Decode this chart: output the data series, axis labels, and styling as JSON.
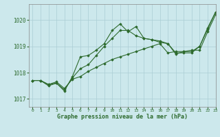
{
  "xlabel": "Graphe pression niveau de la mer (hPa)",
  "background_color": "#cce8ec",
  "grid_color": "#aacdd4",
  "line_color": "#2d6a2d",
  "xlim": [
    -0.5,
    23
  ],
  "ylim": [
    1016.7,
    1020.6
  ],
  "yticks": [
    1017,
    1018,
    1019,
    1020
  ],
  "xticks": [
    0,
    1,
    2,
    3,
    4,
    5,
    6,
    7,
    8,
    9,
    10,
    11,
    12,
    13,
    14,
    15,
    16,
    17,
    18,
    19,
    20,
    21,
    22,
    23
  ],
  "line1_x": [
    0,
    1,
    2,
    3,
    4,
    5,
    6,
    7,
    8,
    9,
    10,
    11,
    12,
    13,
    14,
    15,
    16,
    17,
    18,
    19,
    20,
    21,
    22,
    23
  ],
  "line1_y": [
    1017.7,
    1017.7,
    1017.55,
    1017.65,
    1017.4,
    1017.75,
    1017.85,
    1018.05,
    1018.2,
    1018.35,
    1018.5,
    1018.6,
    1018.7,
    1018.8,
    1018.9,
    1019.0,
    1019.1,
    1018.75,
    1018.8,
    1018.8,
    1018.85,
    1018.85,
    1019.55,
    1020.2
  ],
  "line2_x": [
    0,
    1,
    2,
    3,
    4,
    5,
    6,
    7,
    8,
    9,
    10,
    11,
    12,
    13,
    14,
    15,
    16,
    17,
    18,
    19,
    20,
    21,
    22,
    23
  ],
  "line2_y": [
    1017.7,
    1017.7,
    1017.55,
    1017.6,
    1017.35,
    1017.8,
    1018.15,
    1018.3,
    1018.65,
    1019.0,
    1019.3,
    1019.6,
    1019.6,
    1019.4,
    1019.3,
    1019.25,
    1019.2,
    1019.1,
    1018.75,
    1018.75,
    1018.75,
    1019.0,
    1019.65,
    1020.3
  ],
  "line3_x": [
    0,
    1,
    2,
    3,
    4,
    5,
    6,
    7,
    8,
    9,
    10,
    11,
    12,
    13,
    14,
    15,
    16,
    17,
    18,
    19,
    20,
    21,
    22,
    23
  ],
  "line3_y": [
    1017.7,
    1017.7,
    1017.5,
    1017.6,
    1017.3,
    1017.85,
    1018.6,
    1018.65,
    1018.85,
    1019.1,
    1019.6,
    1019.85,
    1019.55,
    1019.75,
    1019.3,
    1019.25,
    1019.15,
    1019.1,
    1018.7,
    1018.8,
    1018.8,
    1019.0,
    1019.7,
    1020.3
  ]
}
